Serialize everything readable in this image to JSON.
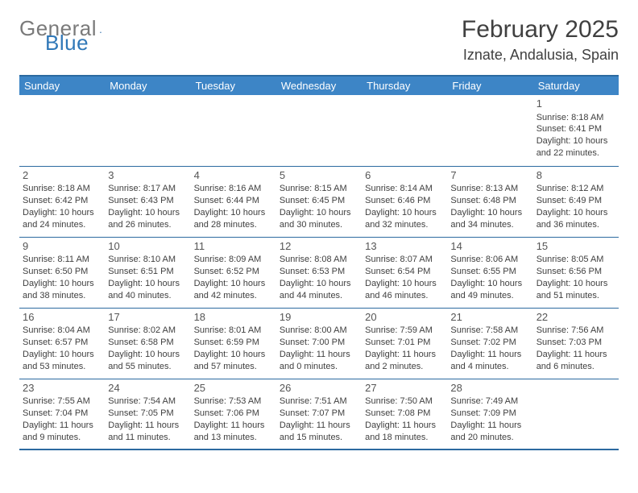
{
  "logo": {
    "text1": "General",
    "text2": "Blue"
  },
  "title": {
    "month": "February 2025",
    "location": "Iznate, Andalusia, Spain"
  },
  "colors": {
    "header_bg": "#3d85c6",
    "header_text": "#ffffff",
    "border": "#2c6aa0",
    "body_text": "#404040",
    "logo_gray": "#7a7a7a",
    "logo_blue": "#3078b8",
    "bg": "#ffffff"
  },
  "daysOfWeek": [
    "Sunday",
    "Monday",
    "Tuesday",
    "Wednesday",
    "Thursday",
    "Friday",
    "Saturday"
  ],
  "layout": {
    "columns": 7,
    "rows": 5,
    "first_day_column": 6,
    "day_count": 28
  },
  "days": {
    "1": {
      "sunrise": "8:18 AM",
      "sunset": "6:41 PM",
      "daylight": "10 hours and 22 minutes."
    },
    "2": {
      "sunrise": "8:18 AM",
      "sunset": "6:42 PM",
      "daylight": "10 hours and 24 minutes."
    },
    "3": {
      "sunrise": "8:17 AM",
      "sunset": "6:43 PM",
      "daylight": "10 hours and 26 minutes."
    },
    "4": {
      "sunrise": "8:16 AM",
      "sunset": "6:44 PM",
      "daylight": "10 hours and 28 minutes."
    },
    "5": {
      "sunrise": "8:15 AM",
      "sunset": "6:45 PM",
      "daylight": "10 hours and 30 minutes."
    },
    "6": {
      "sunrise": "8:14 AM",
      "sunset": "6:46 PM",
      "daylight": "10 hours and 32 minutes."
    },
    "7": {
      "sunrise": "8:13 AM",
      "sunset": "6:48 PM",
      "daylight": "10 hours and 34 minutes."
    },
    "8": {
      "sunrise": "8:12 AM",
      "sunset": "6:49 PM",
      "daylight": "10 hours and 36 minutes."
    },
    "9": {
      "sunrise": "8:11 AM",
      "sunset": "6:50 PM",
      "daylight": "10 hours and 38 minutes."
    },
    "10": {
      "sunrise": "8:10 AM",
      "sunset": "6:51 PM",
      "daylight": "10 hours and 40 minutes."
    },
    "11": {
      "sunrise": "8:09 AM",
      "sunset": "6:52 PM",
      "daylight": "10 hours and 42 minutes."
    },
    "12": {
      "sunrise": "8:08 AM",
      "sunset": "6:53 PM",
      "daylight": "10 hours and 44 minutes."
    },
    "13": {
      "sunrise": "8:07 AM",
      "sunset": "6:54 PM",
      "daylight": "10 hours and 46 minutes."
    },
    "14": {
      "sunrise": "8:06 AM",
      "sunset": "6:55 PM",
      "daylight": "10 hours and 49 minutes."
    },
    "15": {
      "sunrise": "8:05 AM",
      "sunset": "6:56 PM",
      "daylight": "10 hours and 51 minutes."
    },
    "16": {
      "sunrise": "8:04 AM",
      "sunset": "6:57 PM",
      "daylight": "10 hours and 53 minutes."
    },
    "17": {
      "sunrise": "8:02 AM",
      "sunset": "6:58 PM",
      "daylight": "10 hours and 55 minutes."
    },
    "18": {
      "sunrise": "8:01 AM",
      "sunset": "6:59 PM",
      "daylight": "10 hours and 57 minutes."
    },
    "19": {
      "sunrise": "8:00 AM",
      "sunset": "7:00 PM",
      "daylight": "11 hours and 0 minutes."
    },
    "20": {
      "sunrise": "7:59 AM",
      "sunset": "7:01 PM",
      "daylight": "11 hours and 2 minutes."
    },
    "21": {
      "sunrise": "7:58 AM",
      "sunset": "7:02 PM",
      "daylight": "11 hours and 4 minutes."
    },
    "22": {
      "sunrise": "7:56 AM",
      "sunset": "7:03 PM",
      "daylight": "11 hours and 6 minutes."
    },
    "23": {
      "sunrise": "7:55 AM",
      "sunset": "7:04 PM",
      "daylight": "11 hours and 9 minutes."
    },
    "24": {
      "sunrise": "7:54 AM",
      "sunset": "7:05 PM",
      "daylight": "11 hours and 11 minutes."
    },
    "25": {
      "sunrise": "7:53 AM",
      "sunset": "7:06 PM",
      "daylight": "11 hours and 13 minutes."
    },
    "26": {
      "sunrise": "7:51 AM",
      "sunset": "7:07 PM",
      "daylight": "11 hours and 15 minutes."
    },
    "27": {
      "sunrise": "7:50 AM",
      "sunset": "7:08 PM",
      "daylight": "11 hours and 18 minutes."
    },
    "28": {
      "sunrise": "7:49 AM",
      "sunset": "7:09 PM",
      "daylight": "11 hours and 20 minutes."
    }
  },
  "labels": {
    "sunrise": "Sunrise:",
    "sunset": "Sunset:",
    "daylight": "Daylight:"
  }
}
